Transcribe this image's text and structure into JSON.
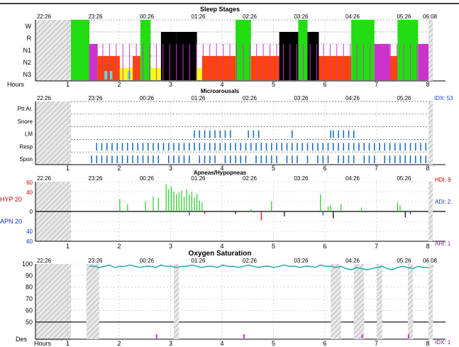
{
  "panels": {
    "sleep": {
      "title": "Sleep Stages",
      "stage_labels": [
        "W",
        "R",
        "N1",
        "N2",
        "N3"
      ],
      "hours_label": "Hours"
    },
    "micro": {
      "title": "Microarousals",
      "row_labels": [
        "Ptt Ar.",
        "Snore",
        "LM",
        "Resp",
        "Spon"
      ],
      "index_label": "IDX: 53"
    },
    "apnea": {
      "title": "Apneas/Hypopneas",
      "y_top_label": "HYP 20",
      "y_bottom_label": "APN 20",
      "y_ticks_top": [
        "60",
        "40",
        "0"
      ],
      "y_ticks_bottom": [
        "20",
        "40",
        "60"
      ],
      "hdi_label": "HDI: 9",
      "adi_label": "ADI: 2.",
      "ahi_label": "AHI: 1"
    },
    "oxygen": {
      "title": "Oxygen Saturation",
      "y_ticks": [
        "100",
        "90",
        "80",
        "70",
        "60",
        "50"
      ],
      "des_label": "Des",
      "hours_label": "Hours",
      "index_label": "IDX: 1"
    }
  },
  "time_ticks": [
    "22:26",
    "23:26",
    "00:26",
    "01:26",
    "02:26",
    "03:26",
    "04:26",
    "05:26",
    "06:08"
  ],
  "time_ticks_short": [
    "22:26",
    "23:26",
    "00:26",
    "01:26",
    "02:26",
    "03:26",
    "04:26",
    "05:26"
  ],
  "hour_ticks": [
    "1",
    "2",
    "3",
    "4",
    "5",
    "6",
    "7",
    "8"
  ],
  "colors": {
    "wake": "#22dd11",
    "rem": "#000000",
    "n1": "#cc33cc",
    "n2": "#ff4400",
    "n3": "#ffff11",
    "n3_alt": "#55dddd",
    "micro_marks": "#1f6fbf",
    "hyp_marks": "#22cc22",
    "apn_marks": "#000000",
    "spo2_line": "#22aaaa",
    "des_marks": "#cc33cc",
    "index_blue": "#1144cc",
    "hyp_axis_red": "#cc0000",
    "apn_axis_blue": "#1133cc",
    "ahi_purple": "#882288"
  },
  "chart_data": [
    {
      "type": "area",
      "title": "Sleep Stages",
      "xlabel": "Hours",
      "categories": [
        "W",
        "R",
        "N1",
        "N2",
        "N3"
      ],
      "x_range_hours": [
        0,
        8
      ],
      "segments": [
        {
          "stage": "W",
          "start": 0.0,
          "end": 0.36
        },
        {
          "stage": "N1",
          "start": 0.36,
          "end": 0.52
        },
        {
          "stage": "N2",
          "start": 0.52,
          "end": 0.95
        },
        {
          "stage": "N3",
          "start": 0.95,
          "end": 1.2
        },
        {
          "stage": "N2",
          "start": 1.2,
          "end": 1.35
        },
        {
          "stage": "W",
          "start": 1.35,
          "end": 1.55
        },
        {
          "stage": "N3",
          "start": 1.55,
          "end": 1.75
        },
        {
          "stage": "R",
          "start": 1.75,
          "end": 2.05
        },
        {
          "stage": "R",
          "start": 2.05,
          "end": 2.45
        },
        {
          "stage": "N3",
          "start": 2.45,
          "end": 2.55
        },
        {
          "stage": "N2",
          "start": 2.55,
          "end": 3.0
        },
        {
          "stage": "N2",
          "start": 3.0,
          "end": 3.2
        },
        {
          "stage": "W",
          "start": 3.2,
          "end": 3.5
        },
        {
          "stage": "N2",
          "start": 3.5,
          "end": 4.05
        },
        {
          "stage": "R",
          "start": 4.05,
          "end": 4.42
        },
        {
          "stage": "W",
          "start": 4.42,
          "end": 4.6
        },
        {
          "stage": "R",
          "start": 4.6,
          "end": 4.82
        },
        {
          "stage": "N2",
          "start": 4.82,
          "end": 5.45
        },
        {
          "stage": "W",
          "start": 5.45,
          "end": 5.9
        },
        {
          "stage": "N1",
          "start": 5.9,
          "end": 6.2
        },
        {
          "stage": "N2",
          "start": 6.2,
          "end": 6.35
        },
        {
          "stage": "W",
          "start": 6.35,
          "end": 6.75
        },
        {
          "stage": "N1",
          "start": 6.75,
          "end": 7.0
        }
      ]
    },
    {
      "type": "scatter",
      "title": "Microarousals",
      "categories": [
        "Ptt Ar.",
        "Snore",
        "LM",
        "Resp",
        "Spon"
      ],
      "x_range_hours": [
        0,
        8
      ],
      "events": {
        "LM": [
          2.4,
          2.5,
          2.6,
          2.7,
          2.8,
          2.9,
          3.0,
          3.1,
          3.45,
          3.55,
          3.65,
          4.3,
          5.05,
          5.1,
          5.2,
          5.3,
          5.4,
          5.5
        ],
        "Resp": [
          0.5,
          0.6,
          0.7,
          0.8,
          0.9,
          1.0,
          1.1,
          1.2,
          1.3,
          1.4,
          1.5,
          1.6,
          1.7,
          1.8,
          1.9,
          2.0,
          2.1,
          2.2,
          2.3,
          2.4,
          2.5,
          2.6,
          2.7,
          2.8,
          2.9,
          3.0,
          3.1,
          3.2,
          3.3,
          3.4,
          3.5,
          3.6,
          3.7,
          3.8,
          3.9,
          4.0,
          4.1,
          4.2,
          4.3,
          4.4,
          4.5,
          4.6,
          4.7,
          4.8,
          4.9,
          5.0,
          5.1,
          5.2,
          5.3,
          5.4,
          5.5,
          5.6,
          5.7,
          5.8,
          5.9,
          6.0,
          6.1,
          6.2,
          6.3,
          6.4,
          6.5,
          6.6,
          6.7,
          6.8,
          6.9,
          7.0
        ],
        "Spon": [
          0.4,
          0.5,
          0.6,
          0.7,
          0.8,
          0.9,
          1.0,
          1.1,
          1.2,
          1.3,
          1.4,
          1.5,
          1.6,
          1.7,
          1.9,
          2.0,
          2.1,
          2.2,
          2.3,
          2.5,
          2.6,
          2.7,
          2.8,
          3.0,
          3.1,
          3.2,
          3.3,
          3.4,
          3.6,
          3.7,
          3.8,
          3.9,
          4.0,
          4.2,
          4.3,
          4.4,
          4.6,
          4.8,
          4.9,
          5.0,
          5.2,
          5.3,
          5.4,
          5.5,
          5.7,
          5.8,
          5.9,
          6.1,
          6.2,
          6.3,
          6.4,
          6.5,
          6.6,
          6.7,
          6.8,
          6.9,
          7.0
        ]
      }
    },
    {
      "type": "bar",
      "title": "Apneas/Hypopneas",
      "x_range_hours": [
        0,
        8
      ],
      "ylim_hyp": [
        0,
        60
      ],
      "ylim_apn": [
        0,
        60
      ],
      "hypopneas": [
        {
          "x": 0.95,
          "v": 25
        },
        {
          "x": 1.1,
          "v": 15
        },
        {
          "x": 1.45,
          "v": 20
        },
        {
          "x": 1.6,
          "v": 30
        },
        {
          "x": 1.7,
          "v": 28
        },
        {
          "x": 1.85,
          "v": 55
        },
        {
          "x": 1.9,
          "v": 45
        },
        {
          "x": 1.95,
          "v": 50
        },
        {
          "x": 2.0,
          "v": 40
        },
        {
          "x": 2.05,
          "v": 35
        },
        {
          "x": 2.1,
          "v": 38
        },
        {
          "x": 2.15,
          "v": 42
        },
        {
          "x": 2.2,
          "v": 30
        },
        {
          "x": 2.25,
          "v": 45
        },
        {
          "x": 2.3,
          "v": 34
        },
        {
          "x": 2.35,
          "v": 40
        },
        {
          "x": 2.4,
          "v": 28
        },
        {
          "x": 2.45,
          "v": 36
        },
        {
          "x": 2.5,
          "v": 22
        },
        {
          "x": 2.55,
          "v": 18
        },
        {
          "x": 3.5,
          "v": 5
        },
        {
          "x": 3.9,
          "v": 20
        },
        {
          "x": 4.85,
          "v": 35
        },
        {
          "x": 5.0,
          "v": 10
        },
        {
          "x": 5.05,
          "v": 12
        },
        {
          "x": 5.25,
          "v": 15
        },
        {
          "x": 5.65,
          "v": 8
        },
        {
          "x": 6.35,
          "v": 18
        },
        {
          "x": 6.4,
          "v": 12
        }
      ],
      "apneas": [
        {
          "x": 2.3,
          "v": 8,
          "color": "#1133cc"
        },
        {
          "x": 2.6,
          "v": 5,
          "color": "#cc0000"
        },
        {
          "x": 3.2,
          "v": 5,
          "color": "#000000"
        },
        {
          "x": 3.7,
          "v": 18,
          "color": "#cc0000"
        },
        {
          "x": 4.15,
          "v": 10,
          "color": "#000000"
        },
        {
          "x": 4.9,
          "v": 8,
          "color": "#1133cc"
        },
        {
          "x": 5.1,
          "v": 14,
          "color": "#000000"
        },
        {
          "x": 6.5,
          "v": 12,
          "color": "#000000"
        },
        {
          "x": 6.6,
          "v": 6,
          "color": "#1133cc"
        }
      ]
    },
    {
      "type": "line",
      "title": "Oxygen Saturation",
      "xlabel": "Hours",
      "ylim": [
        45,
        100
      ],
      "x_range_hours": [
        0,
        8
      ],
      "x": [
        0.35,
        0.45,
        0.55,
        0.65,
        0.75,
        0.85,
        0.95,
        1.05,
        1.15,
        1.25,
        1.35,
        1.45,
        1.55,
        1.65,
        1.75,
        1.85,
        1.95,
        2.05,
        2.15,
        2.25,
        2.35,
        2.45,
        2.55,
        2.65,
        2.75,
        2.85,
        2.95,
        3.05,
        3.15,
        3.25,
        3.35,
        3.45,
        3.55,
        3.65,
        3.75,
        3.85,
        3.95,
        4.05,
        4.15,
        4.25,
        4.35,
        4.45,
        4.55,
        4.65,
        4.75,
        4.85,
        4.95,
        5.05,
        5.15,
        5.25,
        5.35,
        5.45,
        5.55,
        5.65,
        5.75,
        5.85,
        5.95,
        6.05,
        6.15,
        6.25,
        6.35,
        6.45,
        6.55,
        6.65,
        6.75,
        6.85,
        6.95,
        7.05
      ],
      "y": [
        98,
        98,
        97,
        98,
        99,
        97,
        98,
        98,
        99,
        98,
        97,
        98,
        98,
        97,
        99,
        98,
        98,
        97,
        98,
        98,
        99,
        98,
        97,
        98,
        98,
        97,
        99,
        98,
        98,
        97,
        98,
        99,
        98,
        97,
        98,
        98,
        97,
        98,
        99,
        98,
        98,
        97,
        98,
        98,
        97,
        99,
        98,
        98,
        97,
        98,
        96,
        95,
        97,
        96,
        95,
        96,
        97,
        98,
        96,
        95,
        97,
        98,
        97,
        96,
        98,
        97,
        97,
        98
      ],
      "desaturation_windows": [
        [
          0.3,
          0.55
        ],
        [
          2.0,
          2.1
        ],
        [
          5.05,
          5.25
        ],
        [
          5.5,
          5.7
        ],
        [
          5.95,
          6.05
        ],
        [
          6.55,
          6.65
        ]
      ],
      "des_events": [
        1.65,
        3.35,
        5.65,
        6.55,
        6.95
      ]
    }
  ]
}
